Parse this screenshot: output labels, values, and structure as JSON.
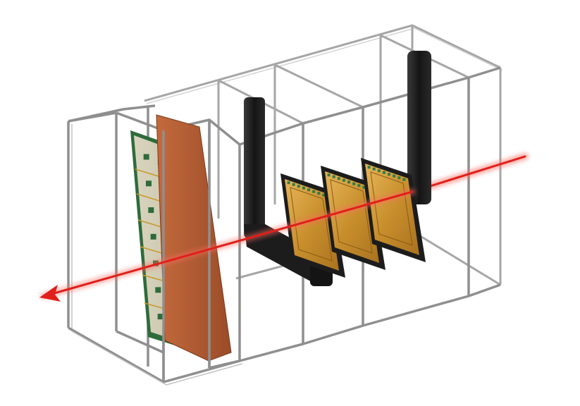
{
  "scene": {
    "background": "#ffffff",
    "components": [
      {
        "name": "frame",
        "icon": "wireframe-cage-icon",
        "color": "#9a9a9a"
      },
      {
        "name": "large-sensor-module",
        "icon": "segmented-sensor-board-icon",
        "board_color": "#2e6b3b",
        "pad_color": "#d8d2b8"
      },
      {
        "name": "absorber-plate",
        "icon": "copper-plate-icon",
        "color": "#b05b33"
      },
      {
        "name": "pixel-detector-planes",
        "icon": "pixel-chip-icon",
        "count": 3,
        "chip_color": "#d8a13b",
        "frame_color": "#1c1c1c"
      },
      {
        "name": "support-arms",
        "icon": "l-bracket-icon",
        "count": 2,
        "color": "#1e1e1e"
      },
      {
        "name": "beam",
        "icon": "beam-arrow-icon",
        "color": "#e0201a",
        "direction": "right-to-left"
      }
    ]
  }
}
